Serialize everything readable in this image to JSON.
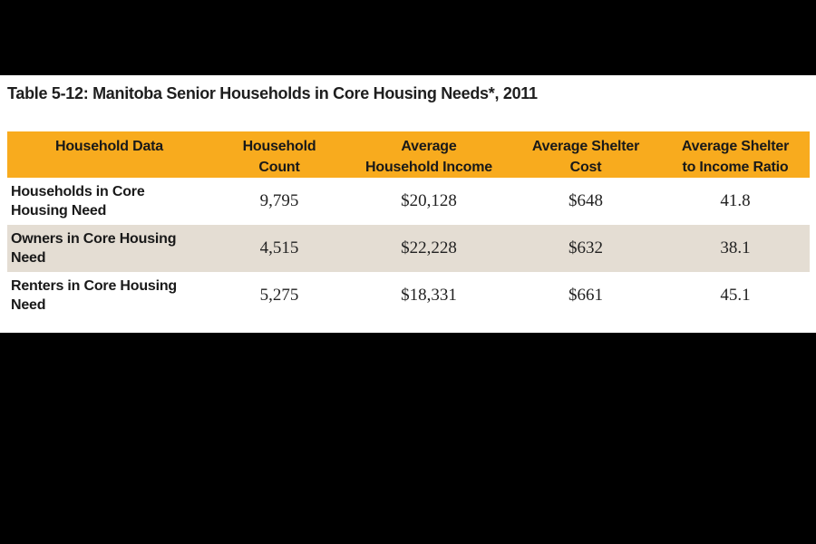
{
  "title": "Table 5-12: Manitoba Senior Households in Core Housing Needs*, 2011",
  "colors": {
    "page_band": "#000000",
    "content_bg": "#FFFFFF",
    "header_bg": "#F8AB1E",
    "alt_row_bg": "#E4DDD3"
  },
  "table": {
    "columns": [
      {
        "lines": [
          "Household Data"
        ]
      },
      {
        "lines": [
          "Household",
          "Count"
        ]
      },
      {
        "lines": [
          "Average",
          "Household Income"
        ]
      },
      {
        "lines": [
          "Average Shelter",
          "Cost"
        ]
      },
      {
        "lines": [
          "Average Shelter",
          "to Income Ratio"
        ]
      }
    ],
    "rows": [
      {
        "label": "Households in Core Housing Need",
        "count": "9,795",
        "income": "$20,128",
        "shelter_cost": "$648",
        "ratio": "41.8"
      },
      {
        "label": "Owners in Core Housing Need",
        "count": "4,515",
        "income": "$22,228",
        "shelter_cost": "$632",
        "ratio": "38.1"
      },
      {
        "label": "Renters in Core Housing Need",
        "count": "5,275",
        "income": "$18,331",
        "shelter_cost": "$661",
        "ratio": "45.1"
      }
    ]
  }
}
